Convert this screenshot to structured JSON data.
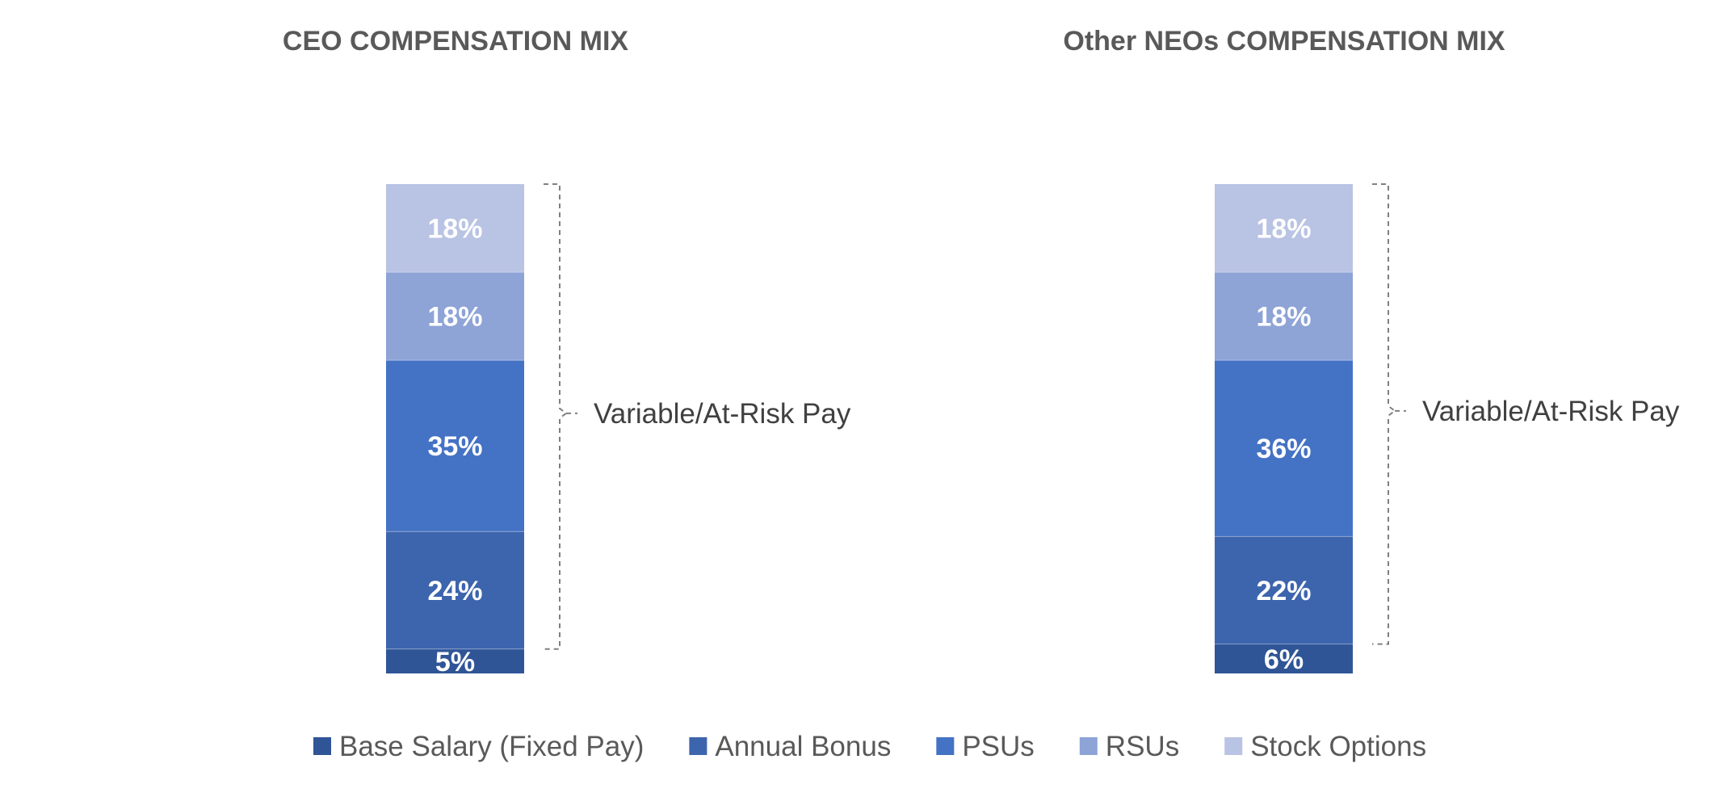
{
  "chart_data": {
    "type": "bar",
    "stacked": true,
    "categories": [
      "CEO COMPENSATION MIX",
      "Other NEOs COMPENSATION MIX"
    ],
    "series": [
      {
        "name": "Base Salary (Fixed Pay)",
        "color": "#2f5597",
        "values": [
          5,
          6
        ]
      },
      {
        "name": "Annual Bonus",
        "color": "#3d65ad",
        "values": [
          24,
          22
        ]
      },
      {
        "name": "PSUs",
        "color": "#4472c4",
        "values": [
          35,
          36
        ]
      },
      {
        "name": "RSUs",
        "color": "#8ea3d6",
        "values": [
          18,
          18
        ]
      },
      {
        "name": "Stock Options",
        "color": "#b9c3e3",
        "values": [
          18,
          18
        ]
      }
    ],
    "data_labels": [
      [
        "5%",
        "24%",
        "35%",
        "18%",
        "18%"
      ],
      [
        "6%",
        "22%",
        "36%",
        "18%",
        "18%"
      ]
    ],
    "brackets": [
      {
        "label": "Variable/At-Risk Pay"
      },
      {
        "label": "Variable/At-Risk Pay"
      }
    ],
    "legend": "bottom",
    "grid": false
  }
}
